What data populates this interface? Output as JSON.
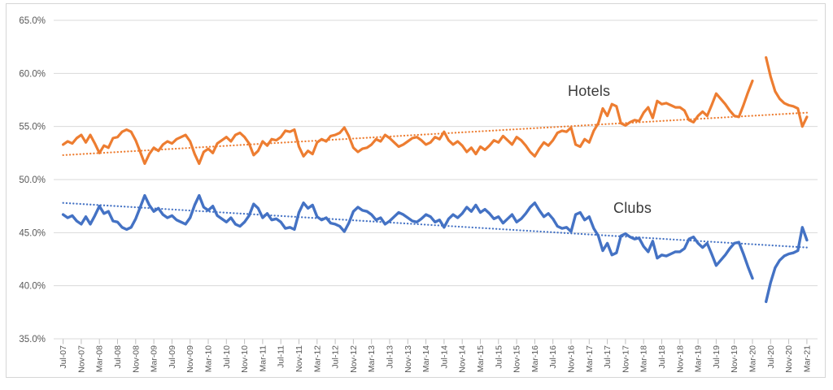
{
  "chart_data": {
    "type": "line",
    "title": "",
    "grid": true,
    "legend_position": "none",
    "y_axis": {
      "min": 35,
      "max": 65,
      "step": 5,
      "format": "percent",
      "tick_labels": [
        "65.0%",
        "60.0%",
        "55.0%",
        "50.0%",
        "45.0%",
        "40.0%",
        "35.0%"
      ]
    },
    "x_axis": {
      "months_per_tick": 4,
      "tick_labels": [
        "Jul-07",
        "Nov-07",
        "Mar-08",
        "Jul-08",
        "Nov-08",
        "Mar-09",
        "Jul-09",
        "Nov-09",
        "Mar-10",
        "Jul-10",
        "Nov-10",
        "Mar-11",
        "Jul-11",
        "Nov-11",
        "Mar-12",
        "Jul-12",
        "Nov-12",
        "Mar-13",
        "Jul-13",
        "Nov-13",
        "Mar-14",
        "Jul-14",
        "Nov-14",
        "Mar-15",
        "Jul-15",
        "Nov-15",
        "Mar-16",
        "Jul-16",
        "Nov-16",
        "Mar-17",
        "Jul-17",
        "Nov-17",
        "Mar-18",
        "Jul-18",
        "Nov-18",
        "Mar-19",
        "Jul-19",
        "Nov-19",
        "Mar-20",
        "Jul-20",
        "Nov-20",
        "Mar-21"
      ]
    },
    "series": [
      {
        "name": "Hotels",
        "color": "#ED7D31",
        "trendline": {
          "style": "dotted",
          "start": 52.3,
          "end": 56.3
        },
        "values": [
          53.3,
          53.6,
          53.4,
          53.9,
          54.2,
          53.5,
          54.2,
          53.4,
          52.5,
          53.2,
          53.0,
          53.9,
          54.0,
          54.5,
          54.7,
          54.5,
          53.7,
          52.6,
          51.5,
          52.4,
          53.0,
          52.7,
          53.3,
          53.6,
          53.4,
          53.8,
          54.0,
          54.2,
          53.6,
          52.4,
          51.5,
          52.6,
          52.9,
          52.5,
          53.4,
          53.7,
          54.0,
          53.6,
          54.2,
          54.4,
          54.0,
          53.4,
          52.3,
          52.7,
          53.6,
          53.2,
          53.8,
          53.7,
          54.0,
          54.6,
          54.5,
          54.7,
          53.1,
          52.2,
          52.7,
          52.4,
          53.5,
          53.8,
          53.6,
          54.1,
          54.2,
          54.4,
          54.9,
          54.1,
          53.0,
          52.6,
          52.9,
          53.0,
          53.3,
          53.8,
          53.6,
          54.2,
          53.9,
          53.5,
          53.1,
          53.3,
          53.6,
          53.9,
          54.0,
          53.7,
          53.3,
          53.5,
          54.0,
          53.8,
          54.5,
          53.7,
          53.3,
          53.6,
          53.2,
          52.6,
          53.0,
          52.4,
          53.1,
          52.8,
          53.2,
          53.7,
          53.5,
          54.1,
          53.7,
          53.3,
          54.0,
          53.7,
          53.2,
          52.6,
          52.2,
          52.9,
          53.5,
          53.2,
          53.7,
          54.4,
          54.6,
          54.5,
          54.9,
          53.3,
          53.1,
          53.8,
          53.5,
          54.6,
          55.3,
          56.7,
          56.0,
          57.1,
          56.9,
          55.3,
          55.1,
          55.4,
          55.6,
          55.5,
          56.3,
          56.8,
          55.8,
          57.4,
          57.1,
          57.2,
          57.0,
          56.8,
          56.8,
          56.5,
          55.6,
          55.4,
          56.0,
          56.4,
          56.0,
          57.0,
          58.1,
          57.6,
          57.1,
          56.5,
          56.0,
          55.9,
          57.0,
          58.2,
          59.3,
          null,
          null,
          61.5,
          59.7,
          58.3,
          57.6,
          57.2,
          57.0,
          56.9,
          56.7,
          55.0,
          55.9
        ]
      },
      {
        "name": "Clubs",
        "color": "#4472C4",
        "trendline": {
          "style": "dotted",
          "start": 47.8,
          "end": 43.6
        },
        "values": [
          46.7,
          46.4,
          46.6,
          46.1,
          45.8,
          46.5,
          45.8,
          46.6,
          47.5,
          46.8,
          47.0,
          46.1,
          46.0,
          45.5,
          45.3,
          45.5,
          46.3,
          47.4,
          48.5,
          47.6,
          47.0,
          47.3,
          46.7,
          46.4,
          46.6,
          46.2,
          46.0,
          45.8,
          46.4,
          47.6,
          48.5,
          47.4,
          47.1,
          47.5,
          46.6,
          46.3,
          46.0,
          46.4,
          45.8,
          45.6,
          46.0,
          46.6,
          47.7,
          47.3,
          46.4,
          46.8,
          46.2,
          46.3,
          46.0,
          45.4,
          45.5,
          45.3,
          46.9,
          47.8,
          47.3,
          47.6,
          46.5,
          46.2,
          46.4,
          45.9,
          45.8,
          45.6,
          45.1,
          45.9,
          47.0,
          47.4,
          47.1,
          47.0,
          46.7,
          46.2,
          46.4,
          45.8,
          46.1,
          46.5,
          46.9,
          46.7,
          46.4,
          46.1,
          46.0,
          46.3,
          46.7,
          46.5,
          46.0,
          46.2,
          45.5,
          46.3,
          46.7,
          46.4,
          46.8,
          47.4,
          47.0,
          47.6,
          46.9,
          47.2,
          46.8,
          46.3,
          46.5,
          45.9,
          46.3,
          46.7,
          46.0,
          46.3,
          46.8,
          47.4,
          47.8,
          47.1,
          46.5,
          46.8,
          46.3,
          45.6,
          45.4,
          45.5,
          45.1,
          46.7,
          46.9,
          46.2,
          46.5,
          45.4,
          44.7,
          43.3,
          44.0,
          42.9,
          43.1,
          44.7,
          44.9,
          44.6,
          44.4,
          44.5,
          43.7,
          43.2,
          44.2,
          42.6,
          42.9,
          42.8,
          43.0,
          43.2,
          43.2,
          43.5,
          44.4,
          44.6,
          44.0,
          43.6,
          44.0,
          43.0,
          41.9,
          42.4,
          42.9,
          43.5,
          44.0,
          44.1,
          43.0,
          41.8,
          40.7,
          null,
          null,
          38.5,
          40.3,
          41.7,
          42.4,
          42.8,
          43.0,
          43.1,
          43.3,
          45.5,
          44.3
        ]
      }
    ]
  },
  "style": {
    "gridline_color": "#d9d9d9",
    "border_color": "#d6d6d6",
    "tick_color": "#bfbfbf",
    "axis_label_color": "#595959",
    "series_label_color": "#3b3b3b",
    "background": "#ffffff"
  }
}
